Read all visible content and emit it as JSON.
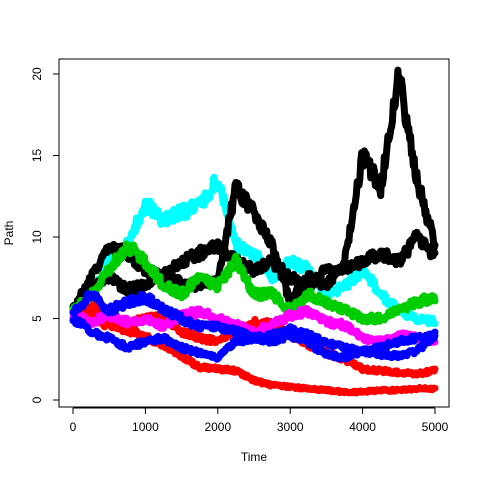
{
  "chart_data": {
    "type": "line",
    "title": "",
    "xlabel": "Time",
    "ylabel": "Path",
    "xlim": [
      0,
      5000
    ],
    "ylim": [
      0,
      20
    ],
    "x_ticks": [
      "0",
      "1000",
      "2000",
      "3000",
      "4000",
      "5000"
    ],
    "y_ticks": [
      "0",
      "5",
      "10",
      "15",
      "20"
    ],
    "grid": false,
    "legend": "none",
    "x": [
      0,
      250,
      500,
      750,
      1000,
      1250,
      1500,
      1750,
      2000,
      2250,
      2500,
      2750,
      3000,
      3250,
      3500,
      3750,
      4000,
      4250,
      4500,
      4750,
      5000
    ],
    "series": [
      {
        "color": "#ff0000",
        "values": [
          5.6,
          5.0,
          4.6,
          4.3,
          3.9,
          3.4,
          2.7,
          2.0,
          1.9,
          1.8,
          1.2,
          0.9,
          0.8,
          0.7,
          0.6,
          0.5,
          0.5,
          0.6,
          0.6,
          0.7,
          0.7
        ]
      },
      {
        "color": "#ff0000",
        "values": [
          5.6,
          5.8,
          5.0,
          4.6,
          5.0,
          5.2,
          4.2,
          3.8,
          3.6,
          4.2,
          4.8,
          4.6,
          4.0,
          3.4,
          2.9,
          2.5,
          1.9,
          1.8,
          1.7,
          1.6,
          1.8
        ]
      },
      {
        "color": "#00ffff",
        "values": [
          5.5,
          6.5,
          8.5,
          9.5,
          12.0,
          11.0,
          11.5,
          12.0,
          13.5,
          9.5,
          9.0,
          7.5,
          8.5,
          8.0,
          6.5,
          7.0,
          8.0,
          6.5,
          5.5,
          5.0,
          4.8
        ]
      },
      {
        "color": "#000000",
        "values": [
          5.5,
          6.8,
          7.5,
          6.8,
          7.0,
          7.8,
          7.2,
          7.0,
          7.5,
          13.0,
          11.5,
          9.5,
          6.0,
          7.5,
          7.0,
          8.5,
          15.0,
          13.0,
          20.0,
          13.5,
          9.5
        ]
      },
      {
        "color": "#000000",
        "values": [
          5.5,
          7.5,
          9.5,
          9.0,
          8.0,
          7.5,
          8.5,
          9.0,
          9.5,
          8.5,
          8.0,
          8.5,
          7.5,
          7.0,
          8.0,
          8.0,
          8.5,
          9.0,
          8.5,
          10.0,
          8.8
        ]
      },
      {
        "color": "#00cd00",
        "values": [
          5.5,
          6.5,
          8.0,
          9.5,
          8.5,
          7.0,
          6.5,
          7.5,
          7.0,
          8.5,
          6.5,
          6.5,
          5.5,
          6.5,
          6.0,
          5.5,
          5.0,
          5.0,
          5.5,
          6.0,
          6.3
        ]
      },
      {
        "color": "#ff00ff",
        "values": [
          5.2,
          4.8,
          5.2,
          4.8,
          5.0,
          4.5,
          5.2,
          5.4,
          5.0,
          4.6,
          4.2,
          4.6,
          5.2,
          5.4,
          4.8,
          4.6,
          3.8,
          3.6,
          4.0,
          3.8,
          3.6
        ]
      },
      {
        "color": "#0000ff",
        "values": [
          5.3,
          6.5,
          5.5,
          6.0,
          6.3,
          5.6,
          5.0,
          4.5,
          4.5,
          4.2,
          3.8,
          4.0,
          4.3,
          4.0,
          3.5,
          3.2,
          3.0,
          3.2,
          3.6,
          3.8,
          3.9
        ]
      },
      {
        "color": "#0000ff",
        "values": [
          5.0,
          4.2,
          3.8,
          3.2,
          3.6,
          3.8,
          3.2,
          2.9,
          2.6,
          3.6,
          3.8,
          3.6,
          4.0,
          3.5,
          2.8,
          2.6,
          3.0,
          2.8,
          2.7,
          3.0,
          4.0
        ]
      }
    ]
  }
}
